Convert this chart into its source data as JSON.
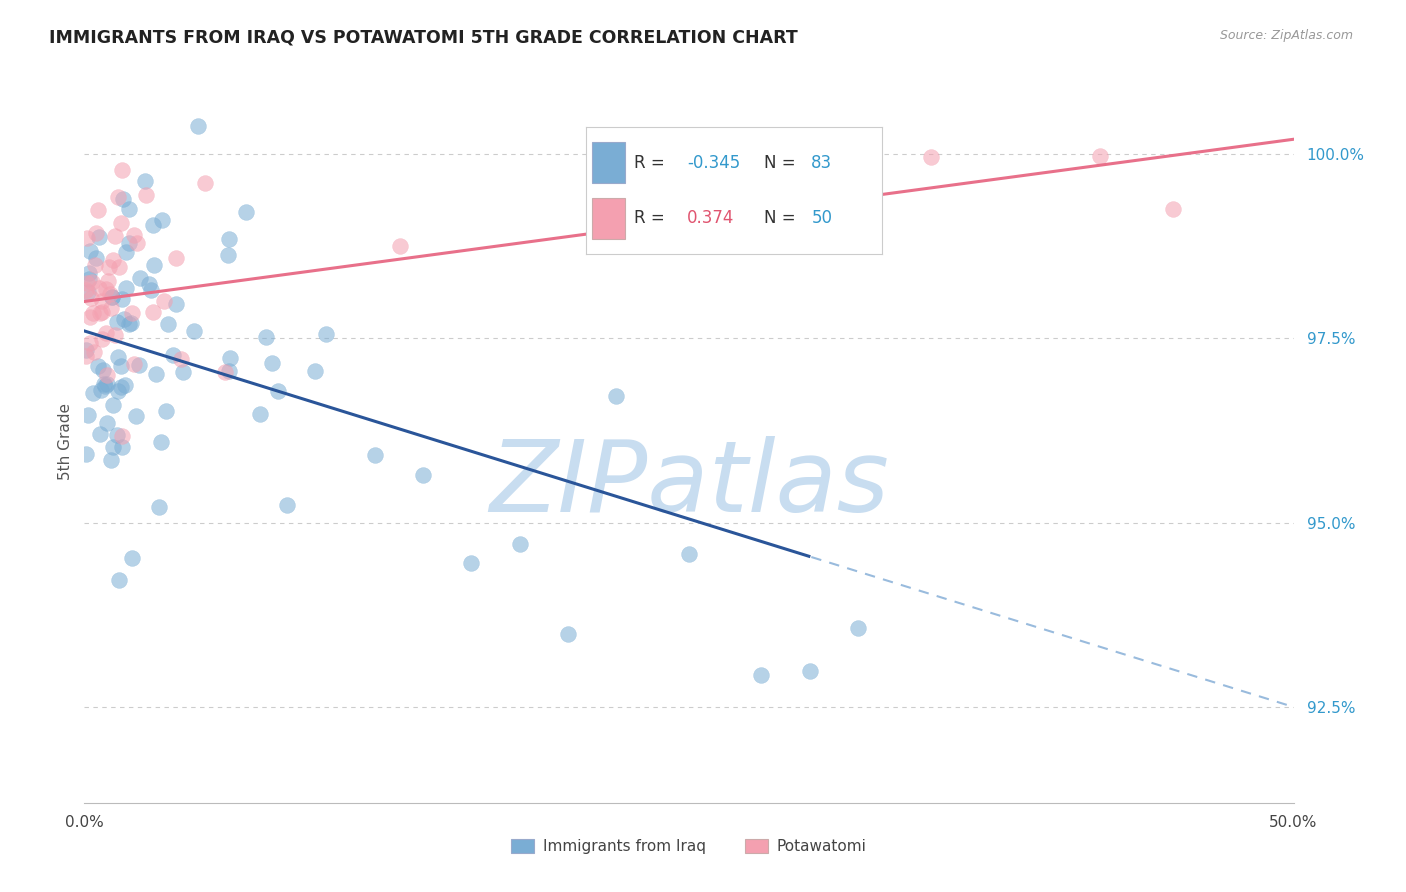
{
  "title": "IMMIGRANTS FROM IRAQ VS POTAWATOMI 5TH GRADE CORRELATION CHART",
  "source": "Source: ZipAtlas.com",
  "xlabel_blue": "Immigrants from Iraq",
  "xlabel_pink": "Potawatomi",
  "ylabel": "5th Grade",
  "xlim": [
    0.0,
    50.0
  ],
  "ylim": [
    91.2,
    101.0
  ],
  "yticks": [
    92.5,
    95.0,
    97.5,
    100.0
  ],
  "xticks": [
    0.0,
    50.0
  ],
  "r_blue": -0.345,
  "n_blue": 83,
  "r_pink": 0.374,
  "n_pink": 50,
  "blue_color": "#7aadd4",
  "pink_color": "#f4a0b0",
  "blue_line_solid_color": "#2a5599",
  "blue_line_dashed_color": "#99bbdd",
  "pink_line_color": "#e8708a",
  "legend_r_color": "#e05570",
  "legend_n_color": "#3399cc",
  "legend_blue_r_color": "#3399cc",
  "watermark_color": "#c8ddf0",
  "grid_color": "#cccccc",
  "ytick_color": "#3399cc",
  "blue_line_y0": 97.6,
  "blue_line_y50": 92.5,
  "blue_solid_end_x": 30.0,
  "pink_line_y0": 98.0,
  "pink_line_y50": 100.2
}
